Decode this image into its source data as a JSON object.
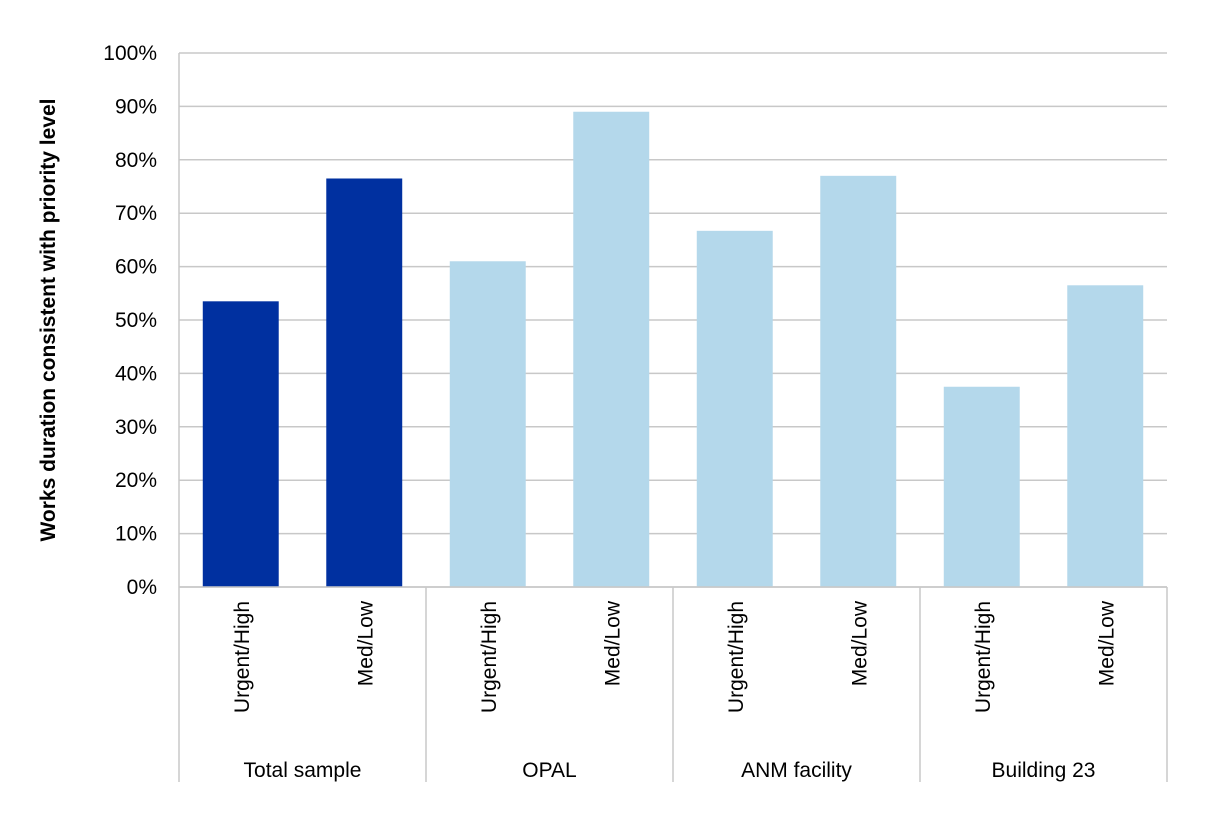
{
  "chart_data": {
    "type": "bar",
    "title": "",
    "xlabel": "",
    "ylabel": "Works duration consistent with priority level",
    "ylim": [
      0,
      100
    ],
    "yticks": [
      0,
      10,
      20,
      30,
      40,
      50,
      60,
      70,
      80,
      90,
      100
    ],
    "ytick_labels": [
      "0%",
      "10%",
      "20%",
      "30%",
      "40%",
      "50%",
      "60%",
      "70%",
      "80%",
      "90%",
      "100%"
    ],
    "grid": true,
    "groups": [
      {
        "name": "Total sample",
        "color": "#0030a0",
        "bars": [
          {
            "label": "Urgent/High",
            "value": 53.5
          },
          {
            "label": "Med/Low",
            "value": 76.5
          }
        ]
      },
      {
        "name": "OPAL",
        "color": "#b4d8eb",
        "bars": [
          {
            "label": "Urgent/High",
            "value": 61
          },
          {
            "label": "Med/Low",
            "value": 89
          }
        ]
      },
      {
        "name": "ANM facility",
        "color": "#b4d8eb",
        "bars": [
          {
            "label": "Urgent/High",
            "value": 66.7
          },
          {
            "label": "Med/Low",
            "value": 77
          }
        ]
      },
      {
        "name": "Building 23",
        "color": "#b4d8eb",
        "bars": [
          {
            "label": "Urgent/High",
            "value": 37.5
          },
          {
            "label": "Med/Low",
            "value": 56.5
          }
        ]
      }
    ]
  }
}
